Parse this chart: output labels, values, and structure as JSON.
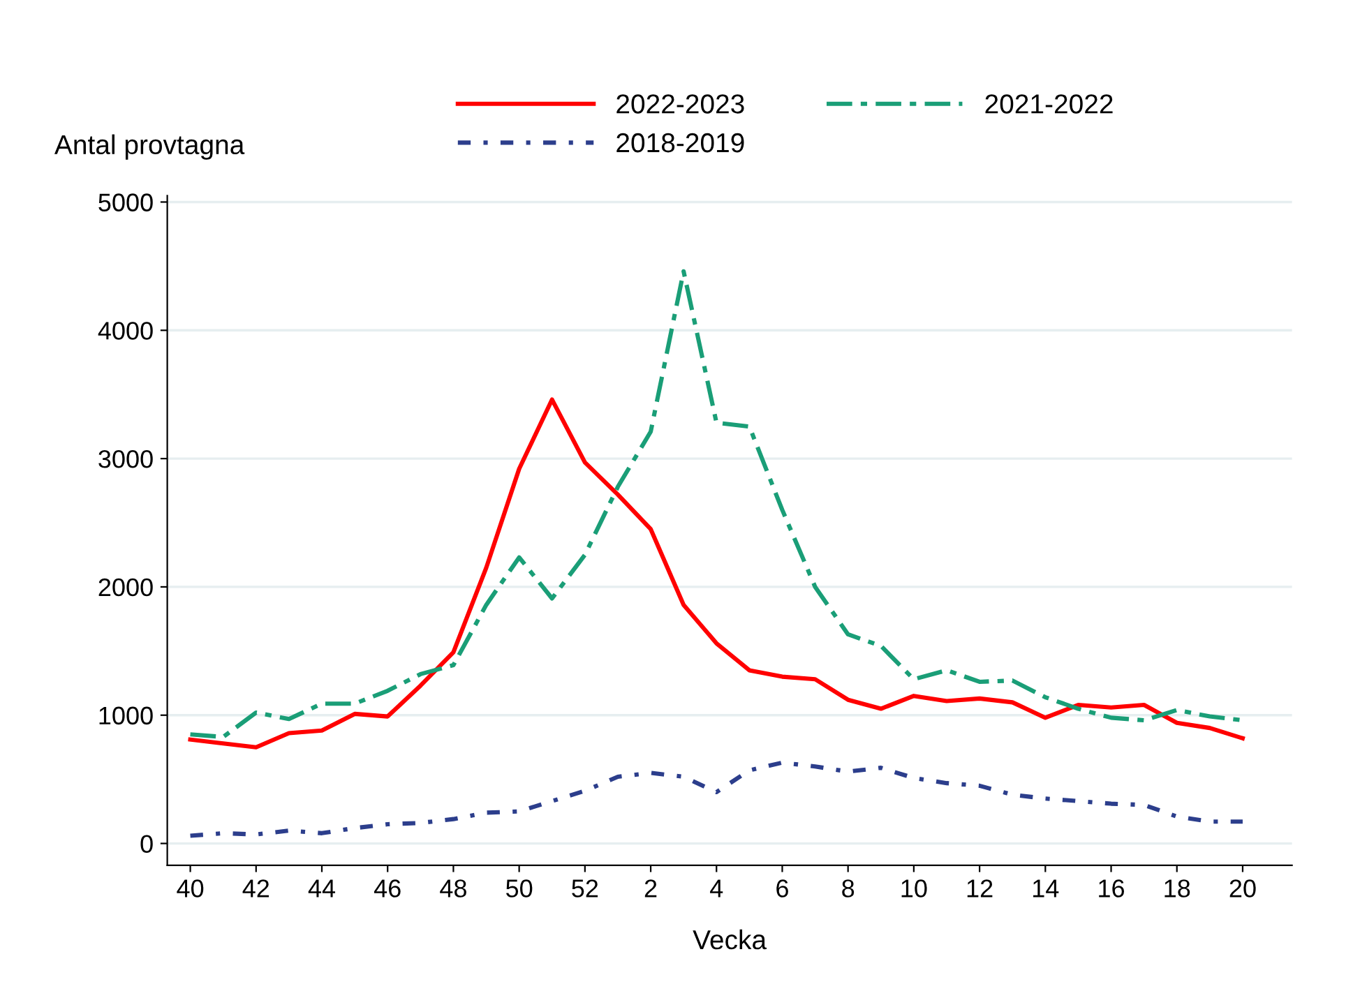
{
  "chart_data": {
    "type": "line",
    "ylabel": "Antal provtagna",
    "xlabel": "Vecka",
    "categories": [
      "40",
      null,
      "42",
      null,
      "44",
      null,
      "46",
      null,
      "48",
      null,
      "50",
      null,
      "52",
      null,
      "2",
      null,
      "4",
      null,
      "6",
      null,
      "8",
      null,
      "10",
      null,
      "12",
      null,
      "14",
      null,
      "16",
      null,
      "18",
      null,
      "20"
    ],
    "series": [
      {
        "name": "2022-2023",
        "color": "#ff0000",
        "line_style": "solid",
        "values": [
          810,
          780,
          750,
          860,
          880,
          1010,
          990,
          1230,
          1490,
          2150,
          2920,
          3460,
          2970,
          2720,
          2450,
          1860,
          1560,
          1350,
          1300,
          1280,
          1120,
          1050,
          1150,
          1110,
          1130,
          1100,
          980,
          1080,
          1060,
          1080,
          940,
          900,
          820
        ]
      },
      {
        "name": "2021-2022",
        "color": "#1a9e77",
        "line_style": "dashed",
        "values": [
          850,
          830,
          1020,
          970,
          1090,
          1090,
          1190,
          1320,
          1390,
          1860,
          2230,
          1910,
          2250,
          2780,
          3210,
          4460,
          3280,
          3250,
          2600,
          2000,
          1630,
          1540,
          1280,
          1350,
          1260,
          1270,
          1140,
          1050,
          980,
          960,
          1040,
          990,
          960
        ]
      },
      {
        "name": "2018-2019",
        "color": "#2c3e8c",
        "line_style": "dotted",
        "values": [
          60,
          80,
          70,
          100,
          80,
          120,
          150,
          160,
          190,
          240,
          250,
          330,
          410,
          520,
          550,
          520,
          400,
          570,
          630,
          600,
          560,
          590,
          510,
          470,
          450,
          380,
          350,
          330,
          310,
          300,
          210,
          170,
          170
        ]
      }
    ],
    "ylim": [
      -170,
      5050
    ],
    "yticks": [
      0,
      1000,
      2000,
      3000,
      4000,
      5000
    ],
    "grid": "y",
    "legend": "top"
  }
}
